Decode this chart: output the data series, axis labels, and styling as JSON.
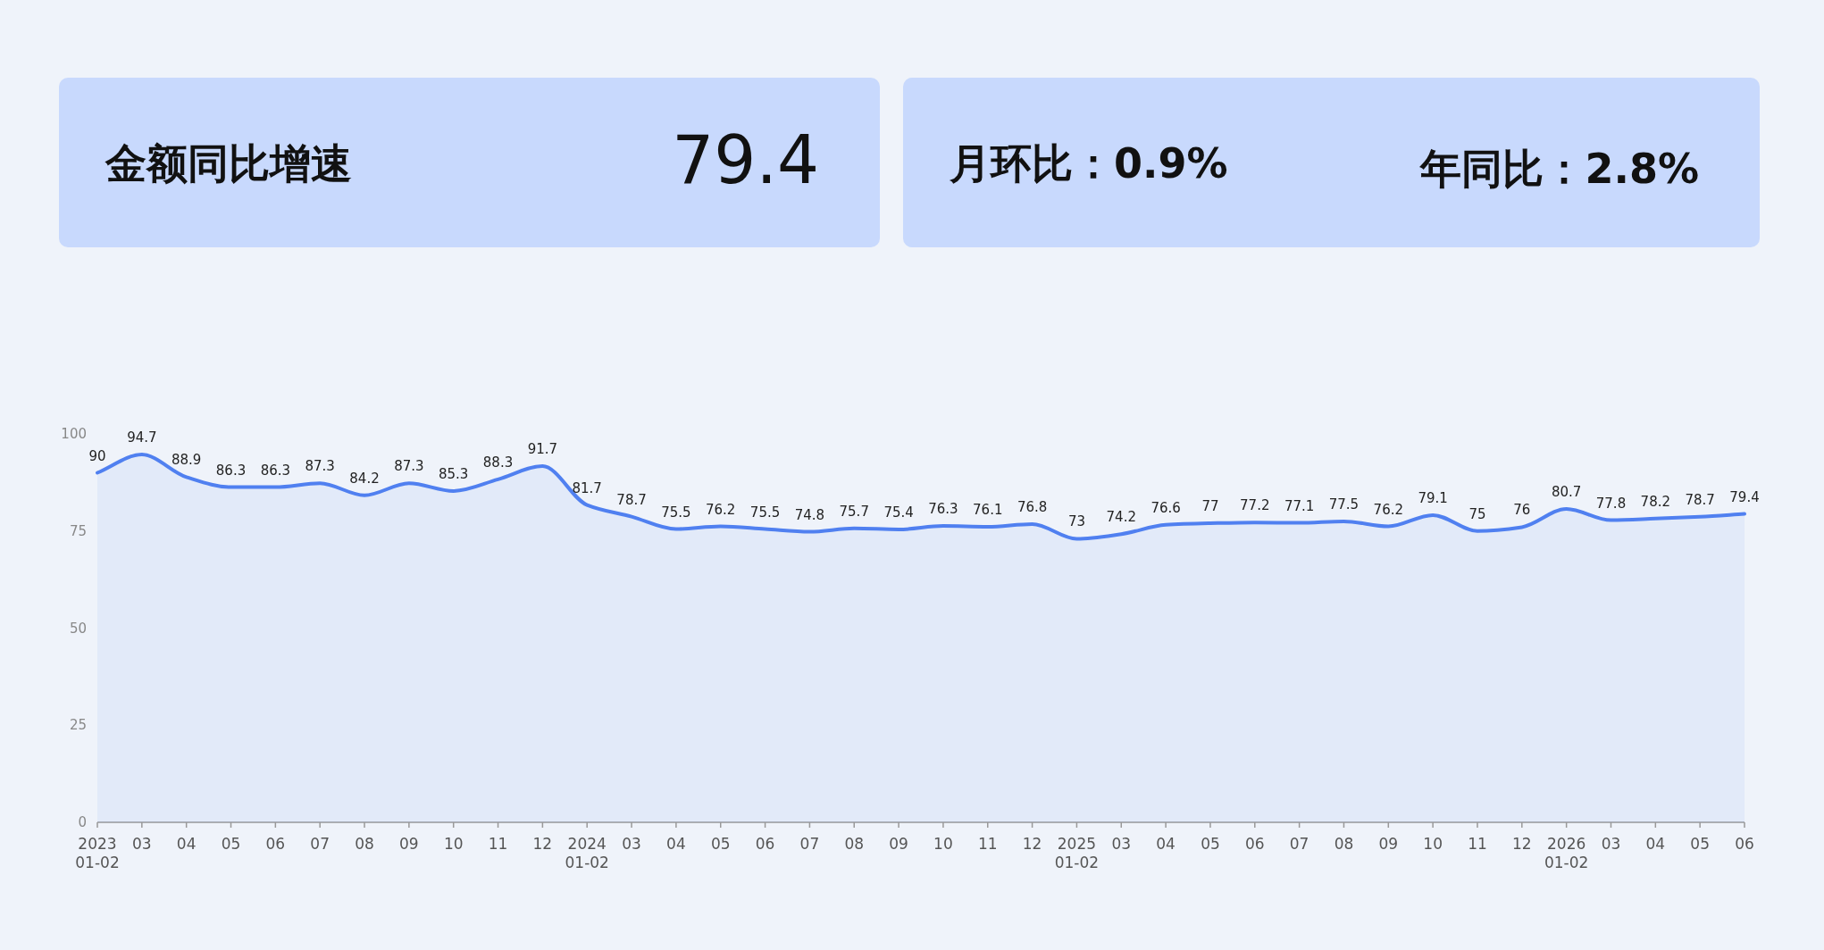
{
  "chart_data": [
    {
      "type": "other",
      "annotations": [
        "金额同比增速",
        "79.4"
      ]
    },
    {
      "type": "other",
      "annotations": [
        "月环比：0.9%",
        "年同比：2.8%"
      ]
    },
    {
      "type": "area",
      "categories": [
        "2023\n01-02",
        "03",
        "04",
        "05",
        "06",
        "07",
        "08",
        "09",
        "10",
        "11",
        "12",
        "2024\n01-02",
        "03",
        "04",
        "05",
        "06",
        "07",
        "08",
        "09",
        "10",
        "11",
        "12",
        "2025\n01-02",
        "03",
        "04",
        "05",
        "06",
        "07",
        "08",
        "09",
        "10",
        "11",
        "12",
        "2026\n01-02",
        "03",
        "04",
        "05",
        "06"
      ],
      "series": [
        {
          "color": "#5080f0",
          "values": [
            90,
            94.7,
            88.9,
            86.3,
            86.3,
            87.3,
            84.2,
            87.3,
            85.3,
            88.3,
            91.7,
            81.7,
            78.7,
            75.5,
            76.2,
            75.5,
            74.8,
            75.7,
            75.4,
            76.3,
            76.1,
            76.8,
            73,
            74.2,
            76.6,
            77,
            77.2,
            77.1,
            77.5,
            76.2,
            79.1,
            75,
            76,
            80.7,
            77.8,
            78.2,
            78.7,
            79.4
          ]
        }
      ],
      "ylim": [
        0,
        100
      ],
      "yticks": [
        0,
        25,
        50,
        75,
        100
      ],
      "data_labels": true
    }
  ]
}
